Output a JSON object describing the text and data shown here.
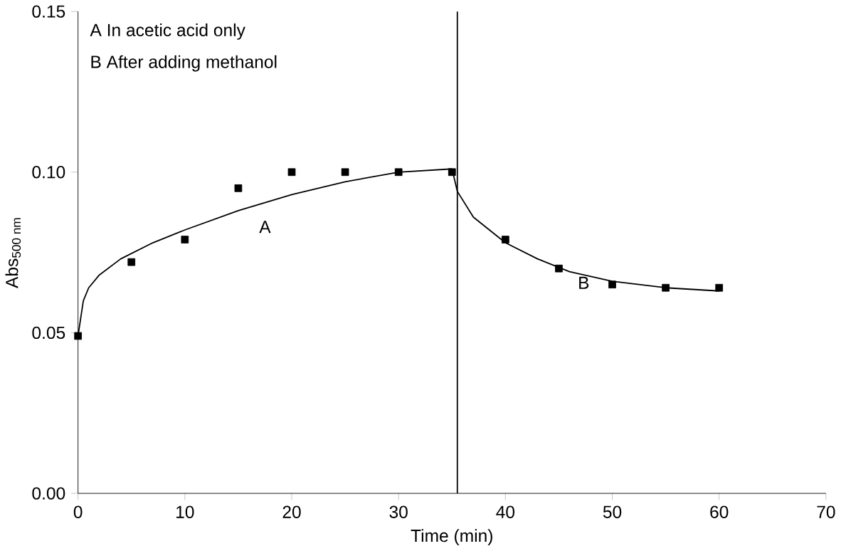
{
  "chart_data": {
    "type": "scatter",
    "xlabel": "Time (min)",
    "ylabel": "Abs$_{500 nm}$",
    "marker": "square",
    "xlim": [
      0,
      70
    ],
    "ylim": [
      0,
      0.15
    ],
    "xticks": [
      0,
      10,
      20,
      30,
      40,
      50,
      60,
      70
    ],
    "yticks": [
      {
        "value": 0,
        "label": "0.00"
      },
      {
        "value": 0.05,
        "label": "0.05"
      },
      {
        "value": 0.1,
        "label": "0.10"
      },
      {
        "value": 0.15,
        "label": "0.15"
      }
    ],
    "series": [
      {
        "color": "#000000",
        "x": [
          0,
          5,
          10,
          15,
          20,
          25,
          30,
          35
        ],
        "values": [
          0.049,
          0.072,
          0.079,
          0.095,
          0.1,
          0.1,
          0.1,
          0.1
        ]
      },
      {
        "color": "#000000",
        "x": [
          40,
          45,
          50,
          55,
          60
        ],
        "values": [
          0.079,
          0.07,
          0.065,
          0.064,
          0.064
        ]
      },
      {
        "type": "line",
        "marker": "none",
        "color": "#000000",
        "x": [
          0,
          0.5,
          1,
          2,
          4,
          7,
          10,
          15,
          20,
          25,
          30,
          35
        ],
        "values": [
          0.049,
          0.06,
          0.064,
          0.068,
          0.073,
          0.078,
          0.082,
          0.088,
          0.093,
          0.097,
          0.1,
          0.101
        ]
      },
      {
        "type": "line",
        "marker": "none",
        "color": "#000000",
        "x": [
          35,
          35.5,
          37,
          40,
          43,
          46,
          50,
          55,
          60
        ],
        "values": [
          0.101,
          0.094,
          0.086,
          0.078,
          0.073,
          0.069,
          0.066,
          0.064,
          0.063
        ]
      }
    ],
    "ref_lines": [
      {
        "axis": "x",
        "value": 35.5,
        "color": "#000000"
      }
    ],
    "annotations": [
      "A In acetic acid only",
      "B After adding methanol",
      "A",
      "B"
    ]
  }
}
